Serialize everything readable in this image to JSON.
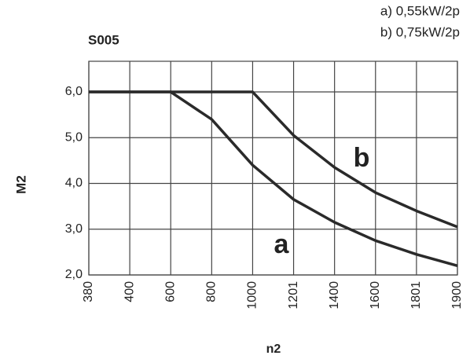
{
  "chart_data": {
    "type": "line",
    "title": "S005",
    "legend_lines": [
      "a) 0,55kW/2p",
      "b) 0,75kW/2p"
    ],
    "y_label": "M2",
    "x_label": "n2",
    "categories": [
      "380",
      "400",
      "600",
      "800",
      "1000",
      "1201",
      "1400",
      "1600",
      "1801",
      "1900"
    ],
    "series": [
      {
        "name": "a",
        "color": "#2a2a2a",
        "values": [
          6.0,
          6.0,
          6.0,
          5.4,
          4.4,
          3.65,
          3.15,
          2.75,
          2.45,
          2.2
        ]
      },
      {
        "name": "b",
        "color": "#2a2a2a",
        "values": [
          6.0,
          6.0,
          6.0,
          6.0,
          6.0,
          5.05,
          4.35,
          3.8,
          3.4,
          3.05
        ]
      }
    ],
    "ylim": [
      2,
      6.67
    ],
    "yticks": [
      {
        "value": 2,
        "label": "2,0"
      },
      {
        "value": 3,
        "label": "3,0"
      },
      {
        "value": 4,
        "label": "4,0"
      },
      {
        "value": 5,
        "label": "5,0"
      },
      {
        "value": 6,
        "label": "6,0"
      }
    ],
    "grid": true
  }
}
